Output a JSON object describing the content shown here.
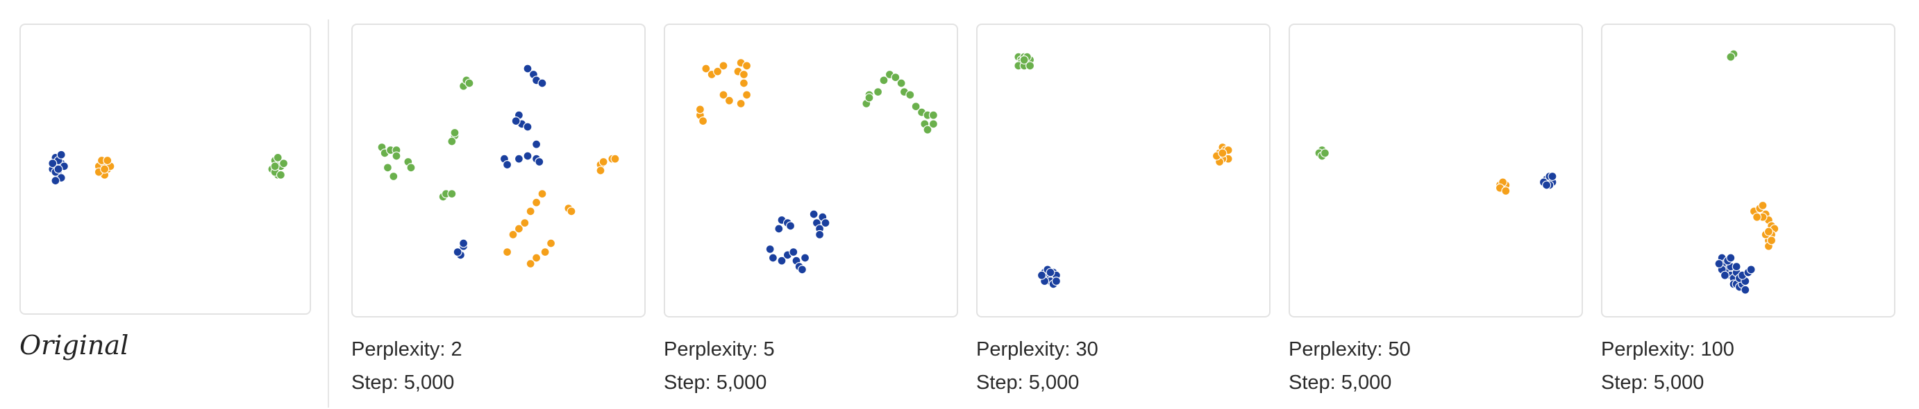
{
  "original": {
    "title": "Original"
  },
  "colors": {
    "blue": "#1a3f9e",
    "orange": "#f5a01a",
    "green": "#6ab04c",
    "point_stroke": "#ffffff"
  },
  "chart_data": [
    {
      "type": "scatter",
      "name": "Original",
      "xlim": [
        0,
        100
      ],
      "ylim": [
        0,
        100
      ],
      "series": [
        {
          "color": "blue",
          "points": [
            [
              11,
              50
            ],
            [
              12,
              46
            ],
            [
              13,
              52
            ],
            [
              14,
              48
            ],
            [
              12,
              51
            ],
            [
              14,
              53
            ],
            [
              13,
              47
            ],
            [
              11,
              48
            ],
            [
              15,
              49
            ],
            [
              14,
              45
            ],
            [
              12,
              54
            ],
            [
              13,
              50
            ]
          ]
        },
        {
          "color": "orange",
          "points": [
            [
              27,
              49
            ],
            [
              28,
              51
            ],
            [
              29,
              48
            ],
            [
              30,
              50
            ],
            [
              28,
              47
            ],
            [
              29,
              52
            ],
            [
              31,
              49
            ],
            [
              27,
              51
            ],
            [
              30,
              47
            ],
            [
              29,
              50
            ]
          ]
        },
        {
          "color": "green",
          "points": [
            [
              87,
              50
            ],
            [
              88,
              47
            ],
            [
              89,
              52
            ],
            [
              90,
              49
            ],
            [
              88,
              51
            ],
            [
              91,
              48
            ],
            [
              89,
              46
            ],
            [
              90,
              52
            ],
            [
              88,
              49
            ]
          ]
        }
      ]
    },
    {
      "type": "scatter",
      "caption_prefix": "Perplexity: ",
      "perplexity": "2",
      "step_prefix": "Step: ",
      "step": "5,000",
      "xlim": [
        0,
        100
      ],
      "ylim": [
        0,
        100
      ],
      "series": [
        {
          "color": "blue",
          "points": [
            [
              60,
              15
            ],
            [
              62,
              17
            ],
            [
              63,
              19
            ],
            [
              65,
              20
            ],
            [
              57,
              31
            ],
            [
              58,
              34
            ],
            [
              56,
              33
            ],
            [
              60,
              35
            ],
            [
              52,
              46
            ],
            [
              53,
              48
            ],
            [
              57,
              46
            ],
            [
              60,
              45
            ],
            [
              63,
              46
            ],
            [
              64,
              47
            ],
            [
              63,
              41
            ],
            [
              38,
              76
            ],
            [
              37,
              79
            ],
            [
              36,
              78
            ],
            [
              38,
              75
            ]
          ]
        },
        {
          "color": "orange",
          "points": [
            [
              55,
              72
            ],
            [
              57,
              70
            ],
            [
              59,
              68
            ],
            [
              61,
              64
            ],
            [
              63,
              61
            ],
            [
              65,
              58
            ],
            [
              53,
              78
            ],
            [
              61,
              82
            ],
            [
              63,
              80
            ],
            [
              66,
              78
            ],
            [
              68,
              75
            ],
            [
              74,
              63
            ],
            [
              75,
              64
            ],
            [
              85,
              48
            ],
            [
              86,
              47
            ],
            [
              89,
              46
            ],
            [
              90,
              46
            ],
            [
              85,
              50
            ]
          ]
        },
        {
          "color": "green",
          "points": [
            [
              38,
              21
            ],
            [
              39,
              19
            ],
            [
              40,
              20
            ],
            [
              35,
              38
            ],
            [
              34,
              40
            ],
            [
              35,
              37
            ],
            [
              10,
              42
            ],
            [
              11,
              44
            ],
            [
              13,
              43
            ],
            [
              15,
              43
            ],
            [
              15,
              45
            ],
            [
              12,
              49
            ],
            [
              14,
              52
            ],
            [
              19,
              47
            ],
            [
              20,
              49
            ],
            [
              31,
              59
            ],
            [
              32,
              58
            ],
            [
              34,
              58
            ]
          ]
        }
      ]
    },
    {
      "type": "scatter",
      "caption_prefix": "Perplexity: ",
      "perplexity": "5",
      "step_prefix": "Step: ",
      "step": "5,000",
      "xlim": [
        0,
        100
      ],
      "ylim": [
        0,
        100
      ],
      "series": [
        {
          "color": "blue",
          "points": [
            [
              40,
              67
            ],
            [
              42,
              68
            ],
            [
              43,
              69
            ],
            [
              39,
              70
            ],
            [
              36,
              77
            ],
            [
              37,
              80
            ],
            [
              40,
              81
            ],
            [
              42,
              79
            ],
            [
              44,
              78
            ],
            [
              45,
              81
            ],
            [
              46,
              83
            ],
            [
              47,
              84
            ],
            [
              48,
              80
            ],
            [
              51,
              65
            ],
            [
              52,
              68
            ],
            [
              53,
              70
            ],
            [
              54,
              66
            ],
            [
              53,
              72
            ],
            [
              55,
              68
            ]
          ]
        },
        {
          "color": "orange",
          "points": [
            [
              14,
              15
            ],
            [
              16,
              17
            ],
            [
              18,
              16
            ],
            [
              20,
              14
            ],
            [
              25,
              16
            ],
            [
              26,
              13
            ],
            [
              28,
              14
            ],
            [
              27,
              20
            ],
            [
              28,
              24
            ],
            [
              26,
              27
            ],
            [
              20,
              24
            ],
            [
              22,
              26
            ],
            [
              12,
              31
            ],
            [
              13,
              33
            ],
            [
              12,
              29
            ],
            [
              27,
              17
            ]
          ]
        },
        {
          "color": "green",
          "points": [
            [
              73,
              23
            ],
            [
              75,
              19
            ],
            [
              77,
              17
            ],
            [
              79,
              18
            ],
            [
              81,
              20
            ],
            [
              82,
              23
            ],
            [
              84,
              24
            ],
            [
              86,
              28
            ],
            [
              88,
              30
            ],
            [
              90,
              31
            ],
            [
              92,
              31
            ],
            [
              89,
              34
            ],
            [
              90,
              36
            ],
            [
              92,
              34
            ],
            [
              70,
              24
            ],
            [
              69,
              27
            ],
            [
              70,
              25
            ]
          ]
        }
      ]
    },
    {
      "type": "scatter",
      "caption_prefix": "Perplexity: ",
      "perplexity": "30",
      "step_prefix": "Step: ",
      "step": "5,000",
      "xlim": [
        0,
        100
      ],
      "ylim": [
        0,
        100
      ],
      "series": [
        {
          "color": "blue",
          "points": [
            [
              23,
              85
            ],
            [
              24,
              86
            ],
            [
              25,
              87
            ],
            [
              26,
              85
            ],
            [
              27,
              86
            ],
            [
              25,
              88
            ],
            [
              23,
              88
            ],
            [
              26,
              89
            ],
            [
              27,
              88
            ],
            [
              24,
              84
            ],
            [
              22,
              86
            ],
            [
              25,
              85
            ]
          ]
        },
        {
          "color": "orange",
          "points": [
            [
              83,
              44
            ],
            [
              84,
              42
            ],
            [
              85,
              44
            ],
            [
              86,
              46
            ],
            [
              84,
              46
            ],
            [
              83,
              47
            ],
            [
              85,
              43
            ],
            [
              86,
              43
            ],
            [
              82,
              45
            ],
            [
              84,
              44
            ]
          ]
        },
        {
          "color": "green",
          "points": [
            [
              14,
              11
            ],
            [
              15,
              12
            ],
            [
              16,
              11
            ],
            [
              17,
              13
            ],
            [
              18,
              12
            ],
            [
              15,
              13
            ],
            [
              14,
              14
            ],
            [
              16,
              14
            ],
            [
              17,
              11
            ],
            [
              18,
              14
            ],
            [
              16,
              12
            ]
          ]
        }
      ]
    },
    {
      "type": "scatter",
      "caption_prefix": "Perplexity: ",
      "perplexity": "50",
      "step_prefix": "Step: ",
      "step": "5,000",
      "xlim": [
        0,
        100
      ],
      "ylim": [
        0,
        100
      ],
      "series": [
        {
          "color": "blue",
          "points": [
            [
              88,
              53
            ],
            [
              89,
              52
            ],
            [
              90,
              54
            ],
            [
              89,
              55
            ],
            [
              87,
              54
            ],
            [
              88,
              55
            ],
            [
              90,
              52
            ]
          ]
        },
        {
          "color": "orange",
          "points": [
            [
              72,
              55
            ],
            [
              73,
              56
            ],
            [
              74,
              55
            ],
            [
              73,
              54
            ],
            [
              72,
              56
            ],
            [
              74,
              57
            ]
          ]
        },
        {
          "color": "green",
          "points": [
            [
              11,
              43
            ],
            [
              10,
              44
            ],
            [
              11,
              45
            ],
            [
              12,
              44
            ]
          ]
        }
      ]
    },
    {
      "type": "scatter",
      "caption_prefix": "Perplexity: ",
      "perplexity": "100",
      "step_prefix": "Step: ",
      "step": "5,000",
      "xlim": [
        0,
        100
      ],
      "ylim": [
        0,
        100
      ],
      "series": [
        {
          "color": "blue",
          "points": [
            [
              41,
              80
            ],
            [
              42,
              82
            ],
            [
              43,
              84
            ],
            [
              44,
              86
            ],
            [
              45,
              87
            ],
            [
              46,
              85
            ],
            [
              44,
              83
            ],
            [
              43,
              81
            ],
            [
              41,
              84
            ],
            [
              42,
              86
            ],
            [
              45,
              89
            ],
            [
              46,
              89
            ],
            [
              47,
              90
            ],
            [
              48,
              89
            ],
            [
              47,
              87
            ],
            [
              49,
              88
            ],
            [
              48,
              86
            ],
            [
              50,
              85
            ],
            [
              51,
              84
            ],
            [
              46,
              83
            ],
            [
              44,
              80
            ],
            [
              49,
              91
            ],
            [
              40,
              82
            ]
          ]
        },
        {
          "color": "orange",
          "points": [
            [
              52,
              64
            ],
            [
              54,
              63
            ],
            [
              55,
              62
            ],
            [
              56,
              65
            ],
            [
              57,
              67
            ],
            [
              58,
              69
            ],
            [
              59,
              70
            ],
            [
              58,
              72
            ],
            [
              57,
              74
            ],
            [
              56,
              72
            ],
            [
              57,
              76
            ],
            [
              58,
              74
            ],
            [
              55,
              66
            ],
            [
              53,
              66
            ],
            [
              57,
              71
            ]
          ]
        },
        {
          "color": "green",
          "points": [
            [
              45,
              10
            ],
            [
              44,
              11
            ]
          ]
        }
      ]
    }
  ]
}
